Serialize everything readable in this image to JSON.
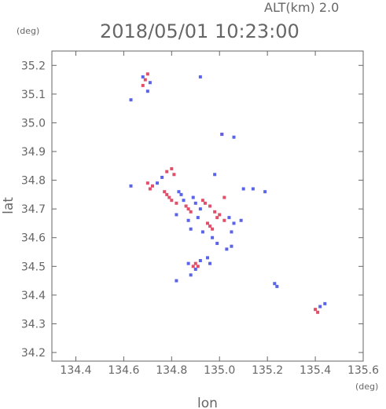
{
  "chart_data": {
    "type": "scatter",
    "title": "2018/05/01 10:23:00",
    "subtitle": "ALT(km) 2.0",
    "xlabel": "lon",
    "ylabel": "lat",
    "x_unit": "(deg)",
    "y_unit": "(deg)",
    "xlim": [
      134.3,
      135.6
    ],
    "ylim": [
      34.17,
      35.25
    ],
    "x_ticks": [
      "134.4",
      "134.6",
      "134.8",
      "135.0",
      "135.2",
      "135.4",
      "135.6"
    ],
    "y_ticks": [
      "34.2",
      "34.3",
      "34.4",
      "34.5",
      "34.6",
      "34.7",
      "34.8",
      "34.9",
      "35.0",
      "35.1",
      "35.2"
    ],
    "grid": false,
    "colors": {
      "positive": "#e0506a",
      "negative": "#5a64e8",
      "axis": "#666666"
    },
    "series": [
      {
        "color": "positive",
        "points": [
          [
            134.69,
            35.15
          ],
          [
            134.68,
            35.13
          ],
          [
            134.7,
            35.17
          ],
          [
            135.01,
            34.96
          ],
          [
            134.8,
            34.84
          ],
          [
            134.78,
            34.83
          ],
          [
            134.81,
            34.82
          ],
          [
            134.7,
            34.79
          ],
          [
            134.71,
            34.77
          ],
          [
            134.72,
            34.78
          ],
          [
            134.77,
            34.76
          ],
          [
            134.78,
            34.75
          ],
          [
            134.79,
            34.74
          ],
          [
            134.8,
            34.73
          ],
          [
            134.82,
            34.72
          ],
          [
            134.86,
            34.71
          ],
          [
            134.87,
            34.7
          ],
          [
            134.88,
            34.69
          ],
          [
            134.93,
            34.73
          ],
          [
            134.94,
            34.72
          ],
          [
            134.96,
            34.71
          ],
          [
            134.98,
            34.69
          ],
          [
            135.0,
            34.68
          ],
          [
            134.99,
            34.67
          ],
          [
            134.95,
            34.65
          ],
          [
            134.96,
            34.64
          ],
          [
            134.97,
            34.63
          ],
          [
            135.02,
            34.66
          ],
          [
            134.9,
            34.51
          ],
          [
            134.89,
            34.5
          ],
          [
            134.91,
            34.5
          ],
          [
            135.02,
            34.74
          ],
          [
            135.4,
            34.35
          ],
          [
            135.41,
            34.34
          ]
        ]
      },
      {
        "color": "negative",
        "points": [
          [
            134.68,
            35.16
          ],
          [
            134.71,
            35.14
          ],
          [
            134.7,
            35.11
          ],
          [
            134.63,
            35.08
          ],
          [
            134.92,
            35.16
          ],
          [
            135.01,
            34.96
          ],
          [
            135.06,
            34.95
          ],
          [
            134.63,
            34.78
          ],
          [
            134.74,
            34.79
          ],
          [
            134.76,
            34.81
          ],
          [
            134.83,
            34.76
          ],
          [
            134.84,
            34.75
          ],
          [
            134.85,
            34.73
          ],
          [
            134.82,
            34.68
          ],
          [
            134.89,
            34.74
          ],
          [
            134.9,
            34.72
          ],
          [
            134.92,
            34.7
          ],
          [
            134.91,
            34.67
          ],
          [
            134.87,
            34.66
          ],
          [
            134.88,
            34.63
          ],
          [
            134.93,
            34.62
          ],
          [
            135.04,
            34.67
          ],
          [
            135.06,
            34.65
          ],
          [
            135.09,
            34.66
          ],
          [
            135.05,
            34.62
          ],
          [
            134.97,
            34.6
          ],
          [
            134.99,
            34.58
          ],
          [
            135.03,
            34.56
          ],
          [
            135.05,
            34.57
          ],
          [
            134.87,
            34.51
          ],
          [
            134.9,
            34.49
          ],
          [
            134.92,
            34.52
          ],
          [
            134.95,
            34.53
          ],
          [
            134.96,
            34.51
          ],
          [
            134.88,
            34.47
          ],
          [
            134.82,
            34.45
          ],
          [
            135.1,
            34.77
          ],
          [
            135.14,
            34.77
          ],
          [
            135.19,
            34.76
          ],
          [
            135.23,
            34.44
          ],
          [
            135.24,
            34.43
          ],
          [
            135.44,
            34.37
          ],
          [
            135.42,
            34.36
          ],
          [
            134.98,
            34.82
          ]
        ]
      }
    ]
  }
}
